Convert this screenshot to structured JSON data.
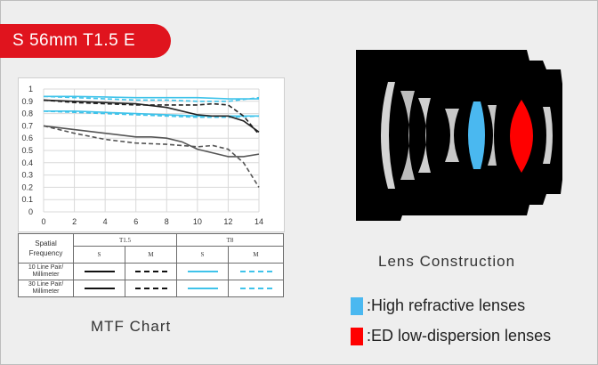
{
  "title": "S 56mm T1.5 E",
  "mtf_caption": "MTF Chart",
  "lens_caption": "Lens Construction",
  "legend": [
    {
      "label": ":High refractive lenses",
      "color": "#4ab8f0"
    },
    {
      "label": ":ED low-dispersion lenses",
      "color": "#ff0000"
    }
  ],
  "table": {
    "spatial_frequency": "Spatial Frequency",
    "aperture_1": "T1.5",
    "aperture_2": "T8",
    "s": "S",
    "m": "M",
    "row_10": "10 Line Pair/ Millimeter",
    "row_30": "30 Line Pair/ Millimeter"
  },
  "chart_data": {
    "type": "line",
    "x_ticks": [
      0,
      2,
      4,
      6,
      8,
      10,
      12,
      14
    ],
    "y_ticks": [
      "0",
      "0.1",
      "0.2",
      "0.3",
      "0.4",
      "0.5",
      "0.6",
      "0.7",
      "0.8",
      "0.9",
      "1"
    ],
    "xlim": [
      0,
      14
    ],
    "ylim": [
      0,
      1
    ],
    "grid": true,
    "series": [
      {
        "color": "#3fc3ea",
        "style": "solid",
        "x": [
          0,
          2,
          4,
          6,
          8,
          10,
          12,
          14
        ],
        "y": [
          0.94,
          0.94,
          0.935,
          0.93,
          0.93,
          0.93,
          0.92,
          0.92
        ]
      },
      {
        "color": "#3fc3ea",
        "style": "dashed",
        "x": [
          0,
          2,
          4,
          6,
          8,
          10,
          12,
          14
        ],
        "y": [
          0.94,
          0.93,
          0.92,
          0.91,
          0.91,
          0.9,
          0.9,
          0.93
        ]
      },
      {
        "color": "#3fc3ea",
        "style": "solid",
        "x": [
          0,
          2,
          4,
          6,
          8,
          10,
          12,
          14
        ],
        "y": [
          0.82,
          0.82,
          0.81,
          0.8,
          0.79,
          0.78,
          0.78,
          0.78
        ]
      },
      {
        "color": "#3fc3ea",
        "style": "dashed",
        "x": [
          0,
          2,
          4,
          6,
          8,
          10,
          12,
          14
        ],
        "y": [
          0.82,
          0.81,
          0.8,
          0.79,
          0.78,
          0.77,
          0.77,
          0.78
        ]
      },
      {
        "color": "#222222",
        "style": "solid",
        "x": [
          0,
          2,
          4,
          6,
          8,
          10,
          11,
          12,
          13,
          14
        ],
        "y": [
          0.91,
          0.9,
          0.89,
          0.88,
          0.85,
          0.79,
          0.78,
          0.78,
          0.74,
          0.65
        ]
      },
      {
        "color": "#222222",
        "style": "dashed",
        "x": [
          0,
          2,
          4,
          6,
          8,
          10,
          11,
          12,
          13,
          14
        ],
        "y": [
          0.91,
          0.89,
          0.88,
          0.87,
          0.87,
          0.87,
          0.88,
          0.87,
          0.78,
          0.63
        ]
      },
      {
        "color": "#555555",
        "style": "solid",
        "x": [
          0,
          2,
          4,
          6,
          7,
          8,
          9,
          10,
          11,
          12,
          13,
          14
        ],
        "y": [
          0.7,
          0.67,
          0.64,
          0.61,
          0.61,
          0.6,
          0.57,
          0.51,
          0.48,
          0.45,
          0.45,
          0.47
        ]
      },
      {
        "color": "#555555",
        "style": "dashed",
        "x": [
          0,
          2,
          4,
          6,
          8,
          9,
          10,
          11,
          12,
          13,
          14
        ],
        "y": [
          0.7,
          0.64,
          0.59,
          0.56,
          0.55,
          0.54,
          0.53,
          0.54,
          0.51,
          0.4,
          0.2
        ]
      }
    ]
  }
}
